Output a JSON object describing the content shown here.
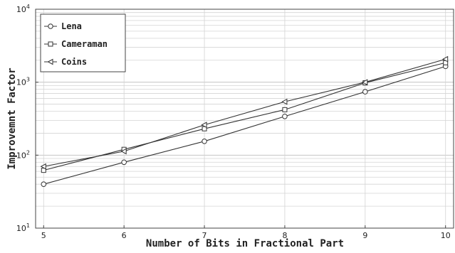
{
  "chart_data": {
    "type": "line",
    "xlabel": "Number of Bits in Fractional Part",
    "ylabel": "Improvemnt Factor",
    "x": [
      5,
      6,
      7,
      8,
      9,
      10
    ],
    "xlim": [
      4.9,
      10.1
    ],
    "ylim": [
      10,
      10000
    ],
    "yscale": "log",
    "grid": true,
    "legend_position": "top-left",
    "series": [
      {
        "name": "Lena",
        "marker": "circle",
        "values": [
          40,
          80,
          155,
          340,
          740,
          1650
        ]
      },
      {
        "name": "Cameraman",
        "marker": "square",
        "values": [
          62,
          120,
          230,
          420,
          980,
          1850
        ]
      },
      {
        "name": "Coins",
        "marker": "triangle-left",
        "values": [
          70,
          113,
          260,
          540,
          1000,
          2070
        ]
      }
    ],
    "x_tick_labels": [
      "5",
      "6",
      "7",
      "8",
      "9",
      "10"
    ],
    "y_ticks": [
      {
        "value": 10,
        "base": "10",
        "exp": "1"
      },
      {
        "value": 100,
        "base": "10",
        "exp": "2"
      },
      {
        "value": 1000,
        "base": "10",
        "exp": "3"
      },
      {
        "value": 10000,
        "base": "10",
        "exp": "4"
      }
    ],
    "colors": {
      "line": "#333333",
      "grid": "#d4d4d4",
      "axis": "#444444"
    }
  }
}
